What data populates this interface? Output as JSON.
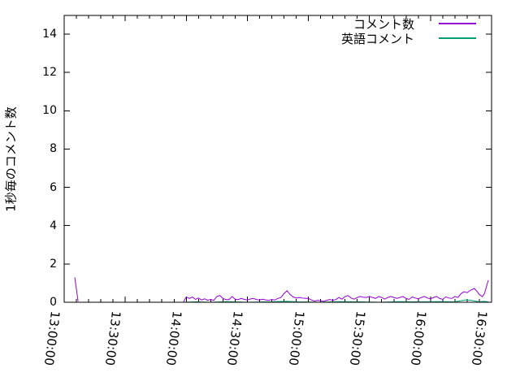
{
  "figure": {
    "background": "#ffffff",
    "axis_color": "#000000"
  },
  "chart_data": {
    "type": "line",
    "title": "",
    "xlabel": "",
    "ylabel": "1秒毎のコメント数",
    "x_range": [
      "13:00:00",
      "16:30:00"
    ],
    "x_major_ticks": [
      "13:00:00",
      "13:30:00",
      "14:00:00",
      "14:30:00",
      "15:00:00",
      "15:30:00",
      "16:00:00",
      "16:30:00"
    ],
    "x_minor_tick_interval_minutes": 6,
    "ylim": [
      0,
      15
    ],
    "y_ticks": [
      0,
      2,
      4,
      6,
      8,
      10,
      12,
      14
    ],
    "grid": false,
    "legend_position": "top-right-inside",
    "series": [
      {
        "name": "コメント数",
        "color": "#9400D3",
        "points": [
          [
            "13:05:12",
            1.3
          ],
          [
            "13:06:50",
            0.05
          ],
          null,
          [
            "13:58:40",
            0.02
          ],
          [
            "14:00:00",
            0.28
          ],
          [
            "14:01:30",
            0.2
          ],
          [
            "14:03:00",
            0.27
          ],
          [
            "14:04:30",
            0.15
          ],
          [
            "14:06:00",
            0.22
          ],
          [
            "14:07:30",
            0.12
          ],
          [
            "14:09:00",
            0.18
          ],
          [
            "14:10:30",
            0.1
          ],
          [
            "14:12:00",
            0.15
          ],
          [
            "14:13:30",
            0.1
          ],
          [
            "14:15:00",
            0.3
          ],
          [
            "14:16:30",
            0.35
          ],
          [
            "14:18:00",
            0.2
          ],
          [
            "14:19:30",
            0.14
          ],
          [
            "14:21:00",
            0.14
          ],
          [
            "14:22:30",
            0.3
          ],
          [
            "14:24:00",
            0.16
          ],
          [
            "14:25:30",
            0.14
          ],
          [
            "14:27:00",
            0.2
          ],
          [
            "14:28:30",
            0.15
          ],
          [
            "14:30:00",
            0.12
          ],
          [
            "14:31:30",
            0.17
          ],
          [
            "14:33:00",
            0.2
          ],
          [
            "14:34:30",
            0.14
          ],
          [
            "14:36:00",
            0.12
          ],
          [
            "14:37:30",
            0.16
          ],
          [
            "14:39:00",
            0.12
          ],
          [
            "14:40:30",
            0.1
          ],
          [
            "14:42:00",
            0.14
          ],
          [
            "14:43:30",
            0.12
          ],
          [
            "14:45:00",
            0.2
          ],
          [
            "14:46:30",
            0.25
          ],
          [
            "14:48:00",
            0.45
          ],
          [
            "14:49:30",
            0.6
          ],
          [
            "14:51:00",
            0.4
          ],
          [
            "14:52:30",
            0.28
          ],
          [
            "14:54:00",
            0.22
          ],
          [
            "14:55:30",
            0.25
          ],
          [
            "14:57:00",
            0.22
          ],
          [
            "14:58:30",
            0.2
          ],
          [
            "15:00:00",
            0.2
          ],
          [
            "15:01:30",
            0.12
          ],
          [
            "15:03:00",
            0.06
          ],
          [
            "15:04:30",
            0.1
          ],
          [
            "15:06:00",
            0.08
          ],
          [
            "15:07:30",
            0.05
          ],
          [
            "15:09:00",
            0.1
          ],
          [
            "15:10:30",
            0.14
          ],
          [
            "15:12:00",
            0.1
          ],
          [
            "15:13:30",
            0.14
          ],
          [
            "15:15:00",
            0.25
          ],
          [
            "15:16:30",
            0.16
          ],
          [
            "15:18:00",
            0.3
          ],
          [
            "15:19:30",
            0.35
          ],
          [
            "15:21:00",
            0.22
          ],
          [
            "15:22:30",
            0.16
          ],
          [
            "15:24:00",
            0.25
          ],
          [
            "15:25:30",
            0.3
          ],
          [
            "15:27:00",
            0.26
          ],
          [
            "15:28:30",
            0.25
          ],
          [
            "15:30:00",
            0.3
          ],
          [
            "15:31:30",
            0.25
          ],
          [
            "15:33:00",
            0.2
          ],
          [
            "15:34:30",
            0.3
          ],
          [
            "15:36:00",
            0.25
          ],
          [
            "15:37:30",
            0.16
          ],
          [
            "15:39:00",
            0.25
          ],
          [
            "15:40:30",
            0.3
          ],
          [
            "15:42:00",
            0.25
          ],
          [
            "15:43:30",
            0.2
          ],
          [
            "15:45:00",
            0.25
          ],
          [
            "15:46:30",
            0.3
          ],
          [
            "15:48:00",
            0.2
          ],
          [
            "15:49:30",
            0.15
          ],
          [
            "15:51:00",
            0.28
          ],
          [
            "15:52:30",
            0.22
          ],
          [
            "15:54:00",
            0.18
          ],
          [
            "15:55:30",
            0.25
          ],
          [
            "15:57:00",
            0.3
          ],
          [
            "15:58:30",
            0.22
          ],
          [
            "16:00:00",
            0.18
          ],
          [
            "16:01:30",
            0.25
          ],
          [
            "16:03:00",
            0.3
          ],
          [
            "16:04:30",
            0.2
          ],
          [
            "16:06:00",
            0.15
          ],
          [
            "16:07:30",
            0.28
          ],
          [
            "16:09:00",
            0.22
          ],
          [
            "16:10:30",
            0.2
          ],
          [
            "16:12:00",
            0.3
          ],
          [
            "16:13:30",
            0.25
          ],
          [
            "16:15:00",
            0.45
          ],
          [
            "16:16:30",
            0.55
          ],
          [
            "16:18:00",
            0.5
          ],
          [
            "16:19:30",
            0.62
          ],
          [
            "16:21:30",
            0.72
          ],
          [
            "16:23:00",
            0.55
          ],
          [
            "16:24:00",
            0.4
          ],
          [
            "16:25:30",
            0.3
          ],
          [
            "16:26:30",
            0.45
          ],
          [
            "16:28:24",
            1.15
          ]
        ]
      },
      {
        "name": "英語コメント",
        "color": "#009E73",
        "points": [
          [
            "13:58:40",
            0
          ],
          [
            "14:05:00",
            0.02
          ],
          [
            "14:12:00",
            0
          ],
          [
            "14:20:00",
            0.03
          ],
          [
            "14:30:00",
            0
          ],
          [
            "14:40:00",
            0.02
          ],
          [
            "14:49:00",
            0.05
          ],
          [
            "14:55:00",
            0.02
          ],
          [
            "15:05:00",
            0
          ],
          [
            "15:15:00",
            0.03
          ],
          [
            "15:25:00",
            0.02
          ],
          [
            "15:35:00",
            0
          ],
          [
            "15:45:00",
            0.03
          ],
          [
            "15:55:00",
            0.02
          ],
          [
            "16:05:00",
            0.03
          ],
          [
            "16:12:00",
            0.02
          ],
          [
            "16:15:00",
            0.08
          ],
          [
            "16:17:30",
            0.12
          ],
          [
            "16:20:00",
            0.1
          ],
          [
            "16:22:00",
            0.06
          ],
          [
            "16:24:00",
            0.02
          ],
          [
            "16:26:00",
            0.05
          ],
          [
            "16:28:24",
            0.02
          ]
        ]
      }
    ]
  }
}
